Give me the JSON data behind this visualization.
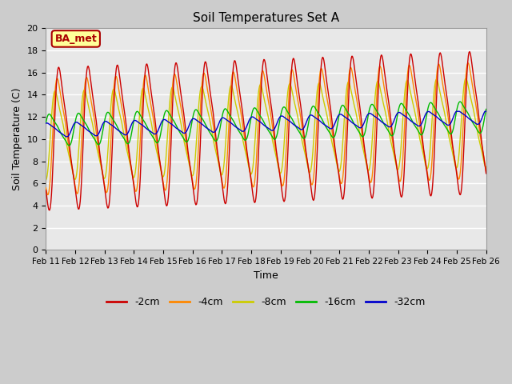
{
  "title": "Soil Temperatures Set A",
  "xlabel": "Time",
  "ylabel": "Soil Temperature (C)",
  "ylim": [
    0,
    20
  ],
  "fig_bg_color": "#e8e8e8",
  "plot_bg_color": "#e8e8e8",
  "annotation_text": "BA_met",
  "annotation_bg": "#ffff99",
  "annotation_border": "#aa0000",
  "x_tick_labels": [
    "Feb 11",
    "Feb 12",
    "Feb 13",
    "Feb 14",
    "Feb 15",
    "Feb 16",
    "Feb 17",
    "Feb 18",
    "Feb 19",
    "Feb 20",
    "Feb 21",
    "Feb 22",
    "Feb 23",
    "Feb 24",
    "Feb 25",
    "Feb 26"
  ],
  "series_colors": [
    "#cc0000",
    "#ff8800",
    "#cccc00",
    "#00bb00",
    "#0000cc"
  ],
  "series_labels": [
    "-2cm",
    "-4cm",
    "-8cm",
    "-16cm",
    "-32cm"
  ],
  "figsize": [
    6.4,
    4.8
  ],
  "dpi": 100
}
